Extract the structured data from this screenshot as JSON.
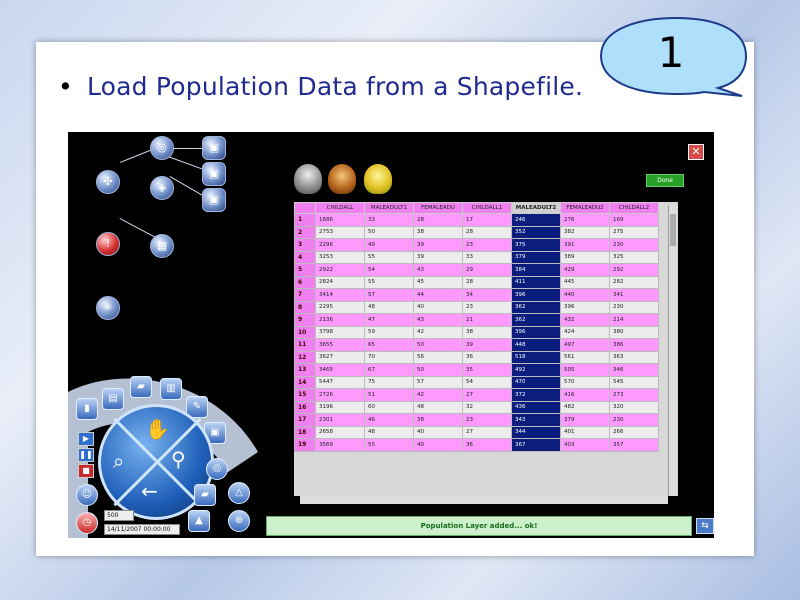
{
  "slide": {
    "bullet_text": "Load Population Data from a Shapefile.",
    "callout_number": "1"
  },
  "app": {
    "close_label": "✕",
    "done_label": "Done",
    "status_message": "Population Layer added... ok!",
    "date_value": "14/11/2007 00:00:00",
    "spin_value": "500"
  },
  "table": {
    "columns": [
      "CHILDALL",
      "MALEADULT1",
      "FEMALEADU",
      "CHILDALL1",
      "MALEADULT2",
      "FEMALEADU2",
      "CHILDALL2"
    ],
    "selected_column_index": 4,
    "rows": [
      [
        "1",
        "1686",
        "33",
        "28",
        "17",
        "246",
        "276",
        "169"
      ],
      [
        "2",
        "2753",
        "50",
        "38",
        "28",
        "352",
        "382",
        "275"
      ],
      [
        "3",
        "2296",
        "49",
        "39",
        "23",
        "375",
        "391",
        "230"
      ],
      [
        "4",
        "3253",
        "55",
        "39",
        "33",
        "379",
        "389",
        "325"
      ],
      [
        "5",
        "2922",
        "54",
        "43",
        "29",
        "384",
        "429",
        "292"
      ],
      [
        "6",
        "2824",
        "55",
        "45",
        "28",
        "411",
        "445",
        "282"
      ],
      [
        "7",
        "3414",
        "57",
        "44",
        "34",
        "396",
        "440",
        "341"
      ],
      [
        "8",
        "2295",
        "48",
        "40",
        "23",
        "362",
        "396",
        "230"
      ],
      [
        "9",
        "2136",
        "47",
        "43",
        "21",
        "362",
        "432",
        "214"
      ],
      [
        "10",
        "3798",
        "59",
        "42",
        "38",
        "396",
        "424",
        "380"
      ],
      [
        "11",
        "3855",
        "65",
        "50",
        "39",
        "448",
        "497",
        "386"
      ],
      [
        "12",
        "3627",
        "70",
        "56",
        "36",
        "518",
        "561",
        "363"
      ],
      [
        "13",
        "3465",
        "67",
        "50",
        "35",
        "492",
        "505",
        "346"
      ],
      [
        "14",
        "5447",
        "75",
        "57",
        "54",
        "470",
        "570",
        "545"
      ],
      [
        "15",
        "2726",
        "51",
        "42",
        "27",
        "372",
        "416",
        "273"
      ],
      [
        "16",
        "3196",
        "60",
        "48",
        "32",
        "436",
        "482",
        "320"
      ],
      [
        "17",
        "2301",
        "46",
        "38",
        "23",
        "343",
        "379",
        "230"
      ],
      [
        "18",
        "2658",
        "48",
        "40",
        "27",
        "344",
        "401",
        "266"
      ],
      [
        "19",
        "3569",
        "55",
        "40",
        "36",
        "367",
        "403",
        "357"
      ]
    ]
  },
  "colors": {
    "header_pink": "#f080f0",
    "row_pink": "#ff99ff",
    "row_white": "#ececec",
    "selected_column": "#0b1e7e",
    "status_green": "#ccf0cc"
  }
}
